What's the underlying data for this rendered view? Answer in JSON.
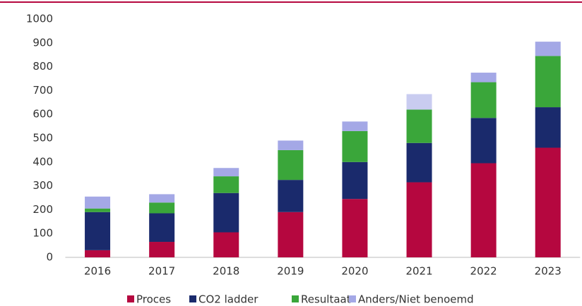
{
  "chart_data": {
    "type": "stacked_bar",
    "categories": [
      "2016",
      "2017",
      "2018",
      "2019",
      "2020",
      "2021",
      "2022",
      "2023"
    ],
    "series": [
      {
        "name": "Proces",
        "color": "#b5073f",
        "values": [
          30,
          65,
          105,
          190,
          245,
          315,
          395,
          460
        ]
      },
      {
        "name": "CO2 ladder",
        "color": "#1a2a6c",
        "values": [
          160,
          120,
          165,
          135,
          155,
          165,
          190,
          170
        ]
      },
      {
        "name": "Resultaat",
        "color": "#3aa63a",
        "values": [
          15,
          45,
          70,
          125,
          130,
          140,
          150,
          215
        ]
      },
      {
        "name": "Anders/Niet benoemd",
        "color": "#a4a8e6",
        "values": [
          50,
          35,
          35,
          40,
          40,
          65,
          40,
          60
        ],
        "point_colors": [
          "#a4a8e6",
          "#a4a8e6",
          "#a4a8e6",
          "#a4a8e6",
          "#a4a8e6",
          "#c9ccf0",
          "#a4a8e6",
          "#a4a8e6"
        ]
      }
    ],
    "ylim": [
      0,
      1000
    ],
    "yticks": [
      0,
      100,
      200,
      300,
      400,
      500,
      600,
      700,
      800,
      900,
      1000
    ],
    "grid": false,
    "legend": "bottom"
  }
}
